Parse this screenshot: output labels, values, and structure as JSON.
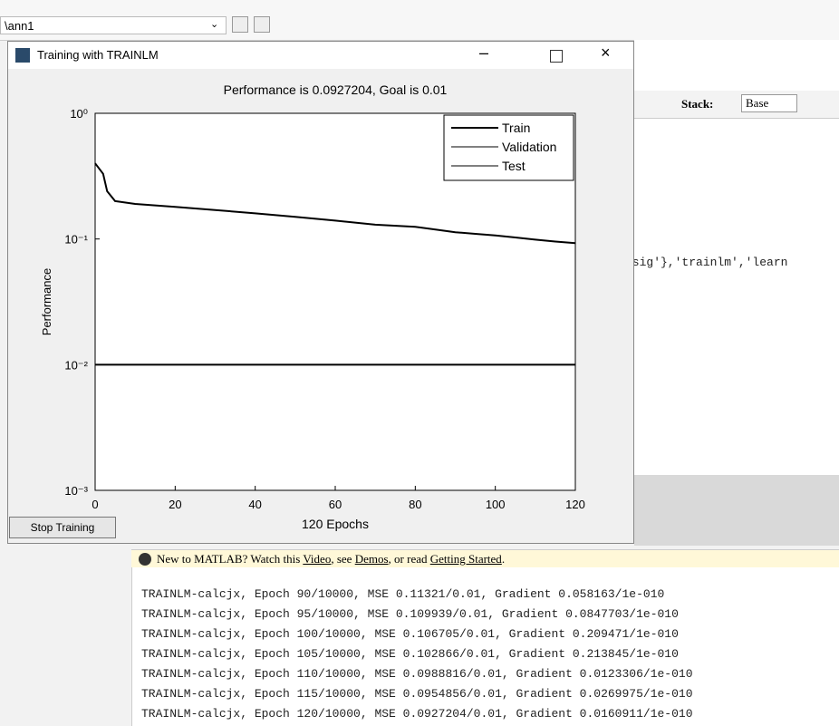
{
  "toolbar": {
    "path": "\\ann1"
  },
  "workspace": {
    "stack_label": "Stack:",
    "stack_value": "Base",
    "code_fragment": "gsig'},'trainlm','learn"
  },
  "window": {
    "title": "Training with TRAINLM",
    "stop_button": "Stop Training"
  },
  "chart_data": {
    "type": "line",
    "title": "Performance is 0.0927204, Goal is 0.01",
    "x_label": "120 Epochs",
    "y_label": "Performance",
    "yscale": "log",
    "x": [
      0,
      2,
      3,
      5,
      10,
      20,
      30,
      40,
      50,
      60,
      70,
      80,
      90,
      95,
      100,
      105,
      110,
      115,
      120
    ],
    "series": [
      {
        "name": "Train",
        "color": "#000000",
        "values": [
          0.4,
          0.33,
          0.24,
          0.2,
          0.19,
          0.18,
          0.17,
          0.16,
          0.15,
          0.14,
          0.13,
          0.125,
          0.11321,
          0.109939,
          0.106705,
          0.102866,
          0.0988816,
          0.0954856,
          0.0927204
        ]
      },
      {
        "name": "Validation",
        "color": "#000000",
        "values": [
          null,
          null,
          null,
          null,
          null,
          null,
          null,
          null,
          null,
          null,
          null,
          null,
          null,
          null,
          null,
          null,
          null,
          null,
          null
        ]
      },
      {
        "name": "Test",
        "color": "#000000",
        "values": [
          null,
          null,
          null,
          null,
          null,
          null,
          null,
          null,
          null,
          null,
          null,
          null,
          null,
          null,
          null,
          null,
          null,
          null,
          null
        ]
      }
    ],
    "goal": 0.01,
    "xlim": [
      0,
      120
    ],
    "xticks": [
      0,
      20,
      40,
      60,
      80,
      100,
      120
    ],
    "ylim": [
      0.001,
      1
    ],
    "yticks": [
      {
        "value": 0.001,
        "label": "10⁻³"
      },
      {
        "value": 0.01,
        "label": "10⁻²"
      },
      {
        "value": 0.1,
        "label": "10⁻¹"
      },
      {
        "value": 1,
        "label": "10⁰"
      }
    ],
    "legend": "top-right"
  },
  "info_bar": {
    "parts": [
      "New to MATLAB? Watch this ",
      "Video",
      ", see ",
      "Demos",
      ", or read ",
      "Getting Started",
      "."
    ]
  },
  "console": {
    "lines": [
      "TRAINLM-calcjx, Epoch 90/10000, MSE 0.11321/0.01, Gradient 0.058163/1e-010",
      "TRAINLM-calcjx, Epoch 95/10000, MSE 0.109939/0.01, Gradient 0.0847703/1e-010",
      "TRAINLM-calcjx, Epoch 100/10000, MSE 0.106705/0.01, Gradient 0.209471/1e-010",
      "TRAINLM-calcjx, Epoch 105/10000, MSE 0.102866/0.01, Gradient 0.213845/1e-010",
      "TRAINLM-calcjx, Epoch 110/10000, MSE 0.0988816/0.01, Gradient 0.0123306/1e-010",
      "TRAINLM-calcjx, Epoch 115/10000, MSE 0.0954856/0.01, Gradient 0.0269975/1e-010",
      "TRAINLM-calcjx, Epoch 120/10000, MSE 0.0927204/0.01, Gradient 0.0160911/1e-010"
    ]
  }
}
